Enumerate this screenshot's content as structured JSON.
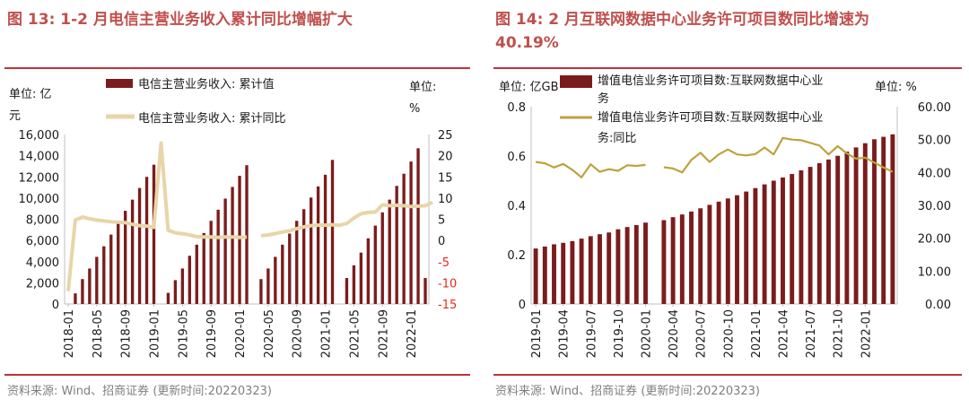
{
  "colors": {
    "title": "#c0504d",
    "bar": "#7b1c1c",
    "line1": "#e8d5a8",
    "line2": "#bfa23e",
    "rule": "#b9363a",
    "neg": "#e8291c",
    "text": "#1a1a1a",
    "source": "#7f7f7f"
  },
  "chart_data": [
    {
      "type": "bar+line",
      "title": "图 13: 1-2 月电信主营业务收入累计同比增幅扩大",
      "left_unit_line1": "单位: 亿",
      "left_unit_line2": "元",
      "right_unit_line1": "单位:",
      "right_unit_line2": "%",
      "left_ticks": [
        "0",
        "2,000",
        "4,000",
        "6,000",
        "8,000",
        "10,000",
        "12,000",
        "14,000",
        "16,000"
      ],
      "right_ticks": [
        "-15",
        "-10",
        "-5",
        "0",
        "5",
        "10",
        "15",
        "20",
        "25"
      ],
      "ylim_left": [
        0,
        16000
      ],
      "ylim_right": [
        -15,
        25
      ],
      "x_labels": [
        "2018-01",
        "2018-05",
        "2018-09",
        "2019-01",
        "2019-05",
        "2019-09",
        "2020-01",
        "2020-05",
        "2020-09",
        "2021-01",
        "2021-05",
        "2021-09",
        "2022-01"
      ],
      "series": [
        {
          "name": "电信主营业务收入: 累计值",
          "kind": "bar",
          "axis": "left",
          "values": [
            null,
            1000,
            2350,
            3350,
            4450,
            5450,
            6550,
            7700,
            8800,
            9850,
            10950,
            12000,
            13150,
            null,
            1050,
            2250,
            3350,
            4550,
            5600,
            6700,
            7850,
            8900,
            9950,
            11050,
            12100,
            13100,
            null,
            2350,
            3350,
            4450,
            5600,
            6650,
            7850,
            8950,
            10050,
            11100,
            12200,
            13600,
            null,
            2450,
            3650,
            4850,
            6200,
            7400,
            8650,
            9850,
            11150,
            12300,
            13450,
            14700,
            2450
          ]
        },
        {
          "name": "电信主营业务收入: 累计同比",
          "kind": "line",
          "axis": "right",
          "values": [
            -12,
            4.8,
            5.5,
            5.1,
            4.8,
            4.6,
            4.4,
            4.3,
            4.2,
            3.8,
            3.5,
            3.4,
            3.1,
            23,
            2.4,
            1.8,
            1.6,
            1.3,
            0.9,
            0.8,
            0.8,
            0.7,
            0.8,
            0.8,
            0.7,
            0.8,
            null,
            1.1,
            1.3,
            1.6,
            2.0,
            2.3,
            2.8,
            3.2,
            3.5,
            3.6,
            3.6,
            3.7,
            3.6,
            4.0,
            5.3,
            6.3,
            6.6,
            6.7,
            8.4,
            8.2,
            8.3,
            8.2,
            8.0,
            8.1,
            8.2,
            9.0
          ]
        }
      ],
      "source": "资料来源: Wind、招商证券 (更新时间:20220323)"
    },
    {
      "type": "bar+line",
      "title_line1": "图 14: 2 月互联网数据中心业务许可项目数同比增速为",
      "title_line2": "40.19%",
      "left_unit": "单位: 亿GB",
      "right_unit": "单位: %",
      "left_ticks": [
        "0",
        "0.2",
        "0.4",
        "0.6",
        "0.8"
      ],
      "right_ticks": [
        "0.00",
        "10.00",
        "20.00",
        "30.00",
        "40.00",
        "50.00",
        "60.00"
      ],
      "ylim_left": [
        0,
        0.8
      ],
      "ylim_right": [
        0,
        60
      ],
      "x_labels": [
        "2019-01",
        "2019-04",
        "2019-07",
        "2019-10",
        "2020-01",
        "2020-04",
        "2020-07",
        "2020-10",
        "2021-01",
        "2021-04",
        "2021-07",
        "2021-10",
        "2022-01"
      ],
      "series": [
        {
          "name_line1": "增值电信业务许可项目数:互联网数据中心业",
          "name_line2": "务",
          "kind": "bar",
          "axis": "left",
          "values": [
            0.225,
            0.233,
            0.242,
            0.248,
            0.255,
            0.265,
            0.275,
            0.283,
            0.29,
            0.303,
            0.312,
            0.32,
            0.33,
            null,
            0.34,
            0.352,
            0.363,
            0.375,
            0.388,
            0.402,
            0.415,
            0.428,
            0.441,
            0.456,
            0.47,
            0.485,
            0.5,
            0.513,
            0.527,
            0.542,
            0.556,
            0.571,
            0.586,
            0.601,
            0.618,
            0.635,
            0.652,
            0.668,
            0.678,
            0.688
          ]
        },
        {
          "name_line1": "增值电信业务许可项目数:互联网数据中心业",
          "name_line2": "务:同比",
          "kind": "line",
          "axis": "right",
          "values": [
            43.2,
            42.8,
            41.5,
            42.6,
            40.8,
            38.5,
            42.5,
            40.2,
            41.0,
            40.5,
            42.2,
            42.0,
            42.3,
            null,
            41.6,
            41.2,
            40.0,
            43.8,
            46.0,
            43.2,
            45.5,
            47.0,
            45.5,
            45.2,
            45.6,
            47.6,
            45.5,
            50.5,
            50.0,
            49.8,
            49.0,
            48.2,
            45.5,
            48.0,
            45.8,
            44.2,
            44.5,
            43.0,
            41.5,
            40.19
          ]
        }
      ],
      "source": "资料来源: Wind、招商证券 (更新时间:20220323)"
    }
  ]
}
